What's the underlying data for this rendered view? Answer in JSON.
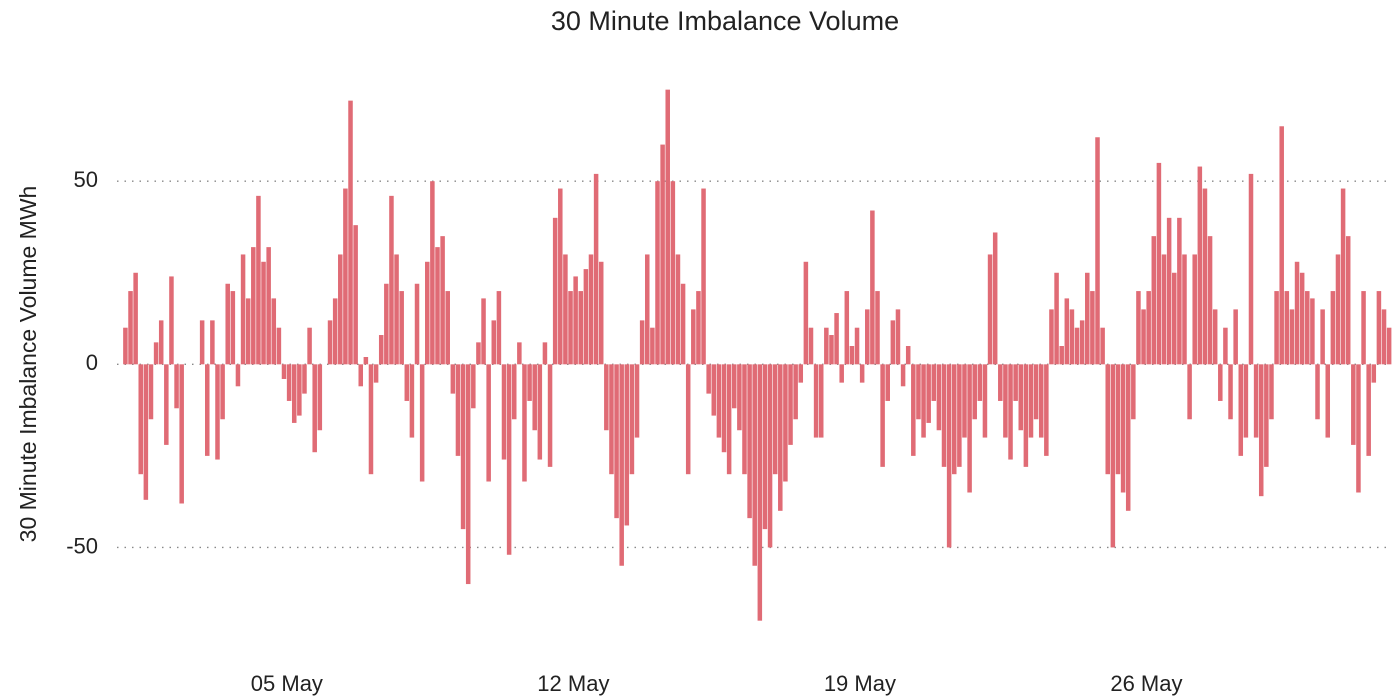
{
  "chart_data": {
    "type": "bar",
    "title": "30 Minute Imbalance Volume",
    "y_label": "30 Minute Imbalance Volume MWh",
    "color": "#e06b75",
    "grid": true,
    "xlim": [
      0.85,
      32
    ],
    "ylim": [
      -75,
      79
    ],
    "yticks": [
      -50,
      0,
      50
    ],
    "xticks": [
      {
        "value": 5,
        "label": "05 May"
      },
      {
        "value": 12,
        "label": "12 May"
      },
      {
        "value": 19,
        "label": "19 May"
      },
      {
        "value": 26,
        "label": "26 May"
      }
    ],
    "x": [
      1,
      1.125,
      1.25,
      1.375,
      1.5,
      1.625,
      1.75,
      1.875,
      2,
      2.125,
      2.25,
      2.375,
      2.5,
      2.625,
      2.75,
      2.875,
      3,
      3.125,
      3.25,
      3.375,
      3.5,
      3.625,
      3.75,
      3.875,
      4,
      4.125,
      4.25,
      4.375,
      4.5,
      4.625,
      4.75,
      4.875,
      5,
      5.125,
      5.25,
      5.375,
      5.5,
      5.625,
      5.75,
      5.875,
      6,
      6.125,
      6.25,
      6.375,
      6.5,
      6.625,
      6.75,
      6.875,
      7,
      7.125,
      7.25,
      7.375,
      7.5,
      7.625,
      7.75,
      7.875,
      8,
      8.125,
      8.25,
      8.375,
      8.5,
      8.625,
      8.75,
      8.875,
      9,
      9.125,
      9.25,
      9.375,
      9.5,
      9.625,
      9.75,
      9.875,
      10,
      10.125,
      10.25,
      10.375,
      10.5,
      10.625,
      10.75,
      10.875,
      11,
      11.125,
      11.25,
      11.375,
      11.5,
      11.625,
      11.75,
      11.875,
      12,
      12.125,
      12.25,
      12.375,
      12.5,
      12.625,
      12.75,
      12.875,
      13,
      13.125,
      13.25,
      13.375,
      13.5,
      13.625,
      13.75,
      13.875,
      14,
      14.125,
      14.25,
      14.375,
      14.5,
      14.625,
      14.75,
      14.875,
      15,
      15.125,
      15.25,
      15.375,
      15.5,
      15.625,
      15.75,
      15.875,
      16,
      16.125,
      16.25,
      16.375,
      16.5,
      16.625,
      16.75,
      16.875,
      17,
      17.125,
      17.25,
      17.375,
      17.5,
      17.625,
      17.75,
      17.875,
      18,
      18.125,
      18.25,
      18.375,
      18.5,
      18.625,
      18.75,
      18.875,
      19,
      19.125,
      19.25,
      19.375,
      19.5,
      19.625,
      19.75,
      19.875,
      20,
      20.125,
      20.25,
      20.375,
      20.5,
      20.625,
      20.75,
      20.875,
      21,
      21.125,
      21.25,
      21.375,
      21.5,
      21.625,
      21.75,
      21.875,
      22,
      22.125,
      22.25,
      22.375,
      22.5,
      22.625,
      22.75,
      22.875,
      23,
      23.125,
      23.25,
      23.375,
      23.5,
      23.625,
      23.75,
      23.875,
      24,
      24.125,
      24.25,
      24.375,
      24.5,
      24.625,
      24.75,
      24.875,
      25,
      25.125,
      25.25,
      25.375,
      25.5,
      25.625,
      25.75,
      25.875,
      26,
      26.125,
      26.25,
      26.375,
      26.5,
      26.625,
      26.75,
      26.875,
      27,
      27.125,
      27.25,
      27.375,
      27.5,
      27.625,
      27.75,
      27.875,
      28,
      28.125,
      28.25,
      28.375,
      28.5,
      28.625,
      28.75,
      28.875,
      29,
      29.125,
      29.25,
      29.375,
      29.5,
      29.625,
      29.75,
      29.875,
      30,
      30.125,
      30.25,
      30.375,
      30.5,
      30.625,
      30.75,
      30.875,
      31,
      31.125,
      31.25,
      31.375,
      31.5,
      31.625,
      31.75,
      31.875
    ],
    "values": [
      10,
      20,
      25,
      -30,
      -37,
      -15,
      6,
      12,
      -22,
      24,
      -12,
      -38,
      0,
      0,
      0,
      12,
      -25,
      12,
      -26,
      -15,
      22,
      20,
      -6,
      30,
      18,
      32,
      46,
      28,
      32,
      18,
      10,
      -4,
      -10,
      -16,
      -14,
      -8,
      10,
      -24,
      -18,
      0,
      12,
      18,
      30,
      48,
      72,
      38,
      -6,
      2,
      -30,
      -5,
      8,
      22,
      46,
      30,
      20,
      -10,
      -20,
      22,
      -32,
      28,
      50,
      32,
      35,
      20,
      -8,
      -25,
      -45,
      -60,
      -12,
      6,
      18,
      -32,
      12,
      20,
      -26,
      -52,
      -15,
      6,
      -32,
      -10,
      -18,
      -26,
      6,
      -28,
      40,
      48,
      30,
      20,
      24,
      20,
      26,
      30,
      52,
      28,
      -18,
      -30,
      -42,
      -55,
      -44,
      -30,
      -20,
      12,
      30,
      10,
      50,
      60,
      75,
      50,
      30,
      22,
      -30,
      15,
      20,
      48,
      -8,
      -14,
      -20,
      -24,
      -30,
      -12,
      -18,
      -30,
      -42,
      -55,
      -70,
      -45,
      -50,
      -30,
      -40,
      -32,
      -22,
      -15,
      -5,
      28,
      10,
      -20,
      -20,
      10,
      8,
      14,
      -5,
      20,
      5,
      10,
      -5,
      15,
      42,
      20,
      -28,
      -10,
      12,
      15,
      -6,
      5,
      -25,
      -15,
      -20,
      -16,
      -10,
      -18,
      -28,
      -50,
      -30,
      -28,
      -20,
      -35,
      -15,
      -10,
      -20,
      30,
      36,
      -10,
      -20,
      -26,
      -10,
      -18,
      -28,
      -20,
      -15,
      -20,
      -25,
      15,
      25,
      5,
      18,
      15,
      10,
      12,
      25,
      20,
      62,
      10,
      -30,
      -50,
      -30,
      -35,
      -40,
      -15,
      20,
      15,
      20,
      35,
      55,
      30,
      40,
      25,
      40,
      30,
      -15,
      30,
      54,
      48,
      35,
      15,
      -10,
      10,
      -15,
      15,
      -25,
      -20,
      52,
      -20,
      -36,
      -28,
      -15,
      20,
      65,
      20,
      15,
      28,
      25,
      20,
      18,
      -15,
      15,
      -20,
      20,
      30,
      48,
      35,
      -22,
      -35,
      20,
      -25,
      -5,
      20,
      15,
      10
    ]
  }
}
